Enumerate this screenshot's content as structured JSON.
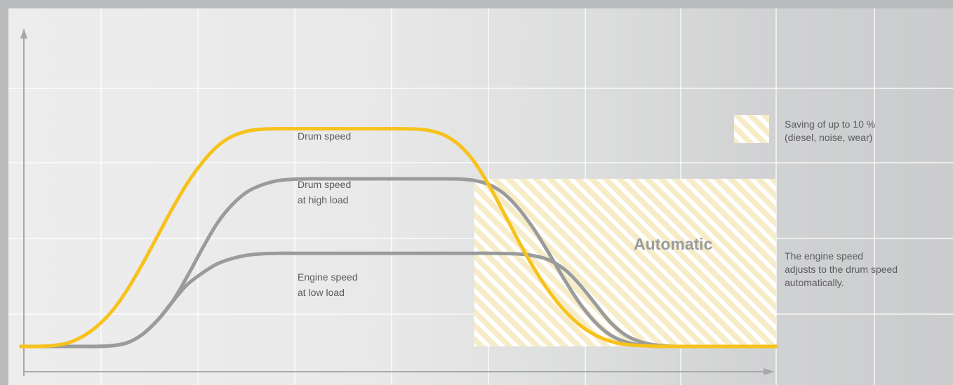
{
  "chart_data": {
    "type": "line",
    "title": "",
    "xlabel": "",
    "ylabel": "",
    "xlim": [
      0,
      100
    ],
    "ylim": [
      0,
      100
    ],
    "grid": true,
    "series": [
      {
        "name": "Drum speed",
        "color": "#f7c21c",
        "x": [
          0,
          2,
          4,
          6,
          8,
          10,
          12,
          14,
          16,
          18,
          20,
          22,
          24,
          26,
          28,
          30,
          32,
          34,
          36,
          38,
          40,
          42,
          44,
          46,
          48,
          50,
          52,
          54,
          56,
          58,
          60,
          62,
          64,
          66,
          68,
          70,
          72,
          74,
          76,
          78,
          80,
          82,
          84,
          86,
          88,
          90,
          92,
          94,
          96,
          98,
          100
        ],
        "y": [
          0,
          0,
          0.3,
          1.3,
          4,
          8.5,
          15,
          24,
          35,
          47,
          59,
          70,
          79,
          86,
          90.3,
          92.5,
          93.3,
          93.5,
          93.5,
          93.5,
          93.5,
          93.5,
          93.5,
          93.5,
          93.5,
          93.5,
          93.4,
          92.8,
          90.8,
          86.6,
          79.4,
          69,
          57,
          44.6,
          33.2,
          23.3,
          15.3,
          9.2,
          5,
          2.3,
          0.9,
          0.4,
          0.1,
          0,
          0,
          0,
          0,
          0,
          0,
          0,
          0
        ]
      },
      {
        "name": "Drum speed at high load",
        "color": "#9a9b9d",
        "x": [
          0,
          2,
          4,
          6,
          8,
          10,
          12,
          14,
          16,
          18,
          20,
          22,
          24,
          26,
          28,
          30,
          32,
          34,
          36,
          38,
          40,
          42,
          44,
          46,
          48,
          50,
          52,
          54,
          56,
          58,
          60,
          62,
          64,
          66,
          68,
          70,
          72,
          74,
          76,
          78,
          80,
          82,
          84,
          86,
          88,
          90,
          92,
          94,
          96,
          98,
          100
        ],
        "y": [
          0,
          0,
          0,
          0,
          0,
          0,
          0.3,
          1.5,
          5,
          11,
          19,
          30,
          42,
          53,
          61,
          66.5,
          69.5,
          71.2,
          71.8,
          72,
          72,
          72,
          72,
          72,
          72,
          72,
          72,
          72,
          72,
          71.9,
          71.3,
          69.5,
          65.5,
          58.8,
          50,
          39.5,
          28.5,
          18.5,
          10.5,
          5,
          2,
          0.6,
          0.1,
          0,
          0,
          0,
          0,
          0,
          0,
          0,
          0
        ]
      },
      {
        "name": "Engine speed at low load",
        "color": "#9a9b9d",
        "x": [
          0,
          2,
          4,
          6,
          8,
          10,
          12,
          14,
          16,
          18,
          20,
          22,
          24,
          26,
          28,
          30,
          32,
          34,
          36,
          38,
          40,
          42,
          44,
          46,
          48,
          50,
          52,
          54,
          56,
          58,
          60,
          62,
          64,
          66,
          68,
          70,
          72,
          74,
          76,
          78,
          80,
          82,
          84,
          86,
          88,
          90,
          92,
          94,
          96,
          98,
          100
        ],
        "y": [
          0,
          0,
          0,
          0,
          0,
          0,
          0.3,
          1.5,
          5,
          11,
          19,
          26.5,
          31.5,
          35.5,
          37.8,
          39.2,
          39.8,
          40,
          40,
          40,
          40,
          40,
          40,
          40,
          40,
          40,
          40,
          40,
          40,
          40,
          40,
          40,
          39.9,
          39.7,
          38.9,
          37,
          33,
          26.5,
          18.5,
          10.5,
          5,
          2,
          0.6,
          0.1,
          0,
          0,
          0,
          0,
          0,
          0,
          0
        ]
      }
    ],
    "curve_labels": [
      {
        "lines": [
          "Drum speed"
        ]
      },
      {
        "lines": [
          "Drum speed",
          "at high load"
        ]
      },
      {
        "lines": [
          "Engine speed",
          "at low load"
        ]
      }
    ],
    "shaded_region": {
      "label": "Automatic",
      "x_range": [
        60,
        100
      ],
      "y_range": [
        0,
        72
      ],
      "fill": "#f6ecc8",
      "hatch": "#ffffff"
    },
    "legend": {
      "placement": "right",
      "hatch_entry": [
        "Saving of up to 10 %",
        "(diesel, noise, wear)"
      ],
      "note": [
        "The engine speed",
        "adjusts to the drum speed",
        "automatically."
      ]
    },
    "colors": {
      "yellow": "#f7c21c",
      "gray_line": "#9a9b9d",
      "axis": "#a7a8aa",
      "text": "#5b5c5e",
      "automatic_text": "#9a9b9d"
    }
  }
}
